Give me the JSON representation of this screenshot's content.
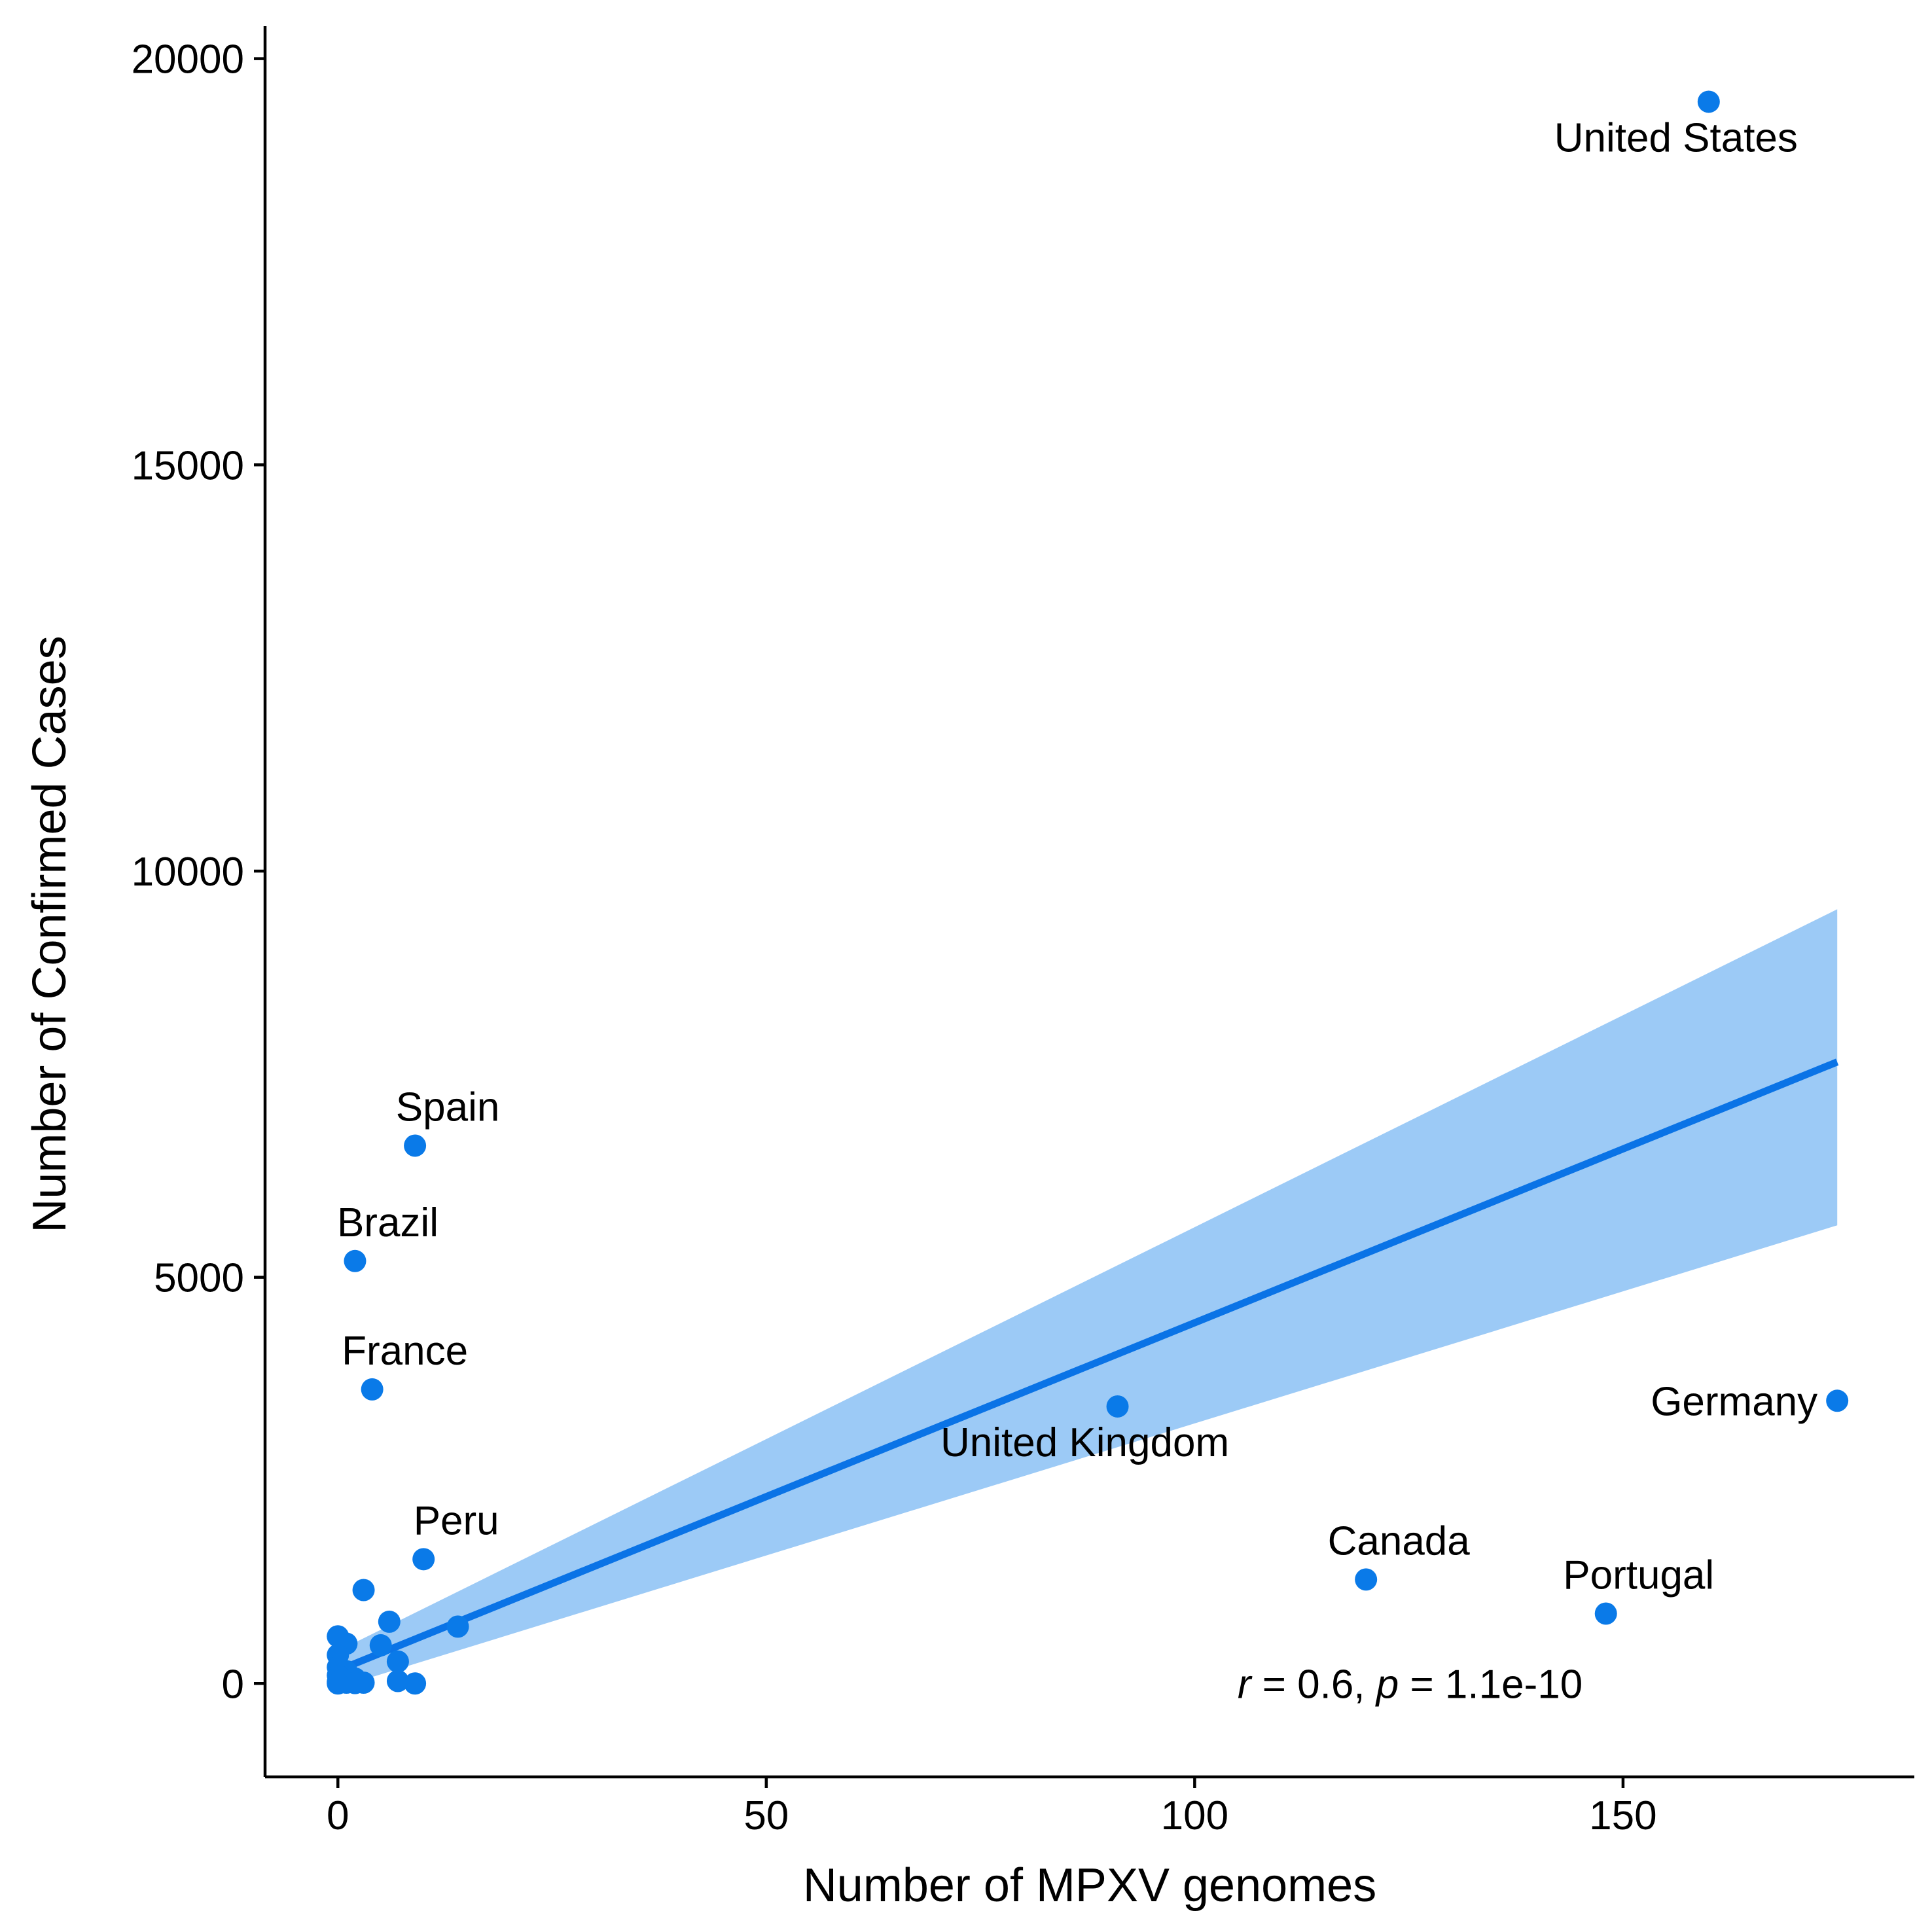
{
  "chart_data": {
    "type": "scatter",
    "title": "",
    "xlabel": "Number of MPXV genomes",
    "ylabel": "Number of Confirmed Cases",
    "xlim": [
      -8.5,
      184
    ],
    "ylim": [
      -1150,
      20400
    ],
    "x_ticks": [
      0,
      50,
      100,
      150
    ],
    "y_ticks": [
      0,
      5000,
      10000,
      15000,
      20000
    ],
    "x_tick_labels": [
      "0",
      "50",
      "100",
      "150"
    ],
    "y_tick_labels": [
      "0",
      "5000",
      "10000",
      "15000",
      "20000"
    ],
    "grid": false,
    "legend": "none",
    "point_color": "#0a7ae8",
    "fit_color": "#0a73e6",
    "band_color": "#9ccaf6",
    "labeled_points": [
      {
        "label": "United States",
        "x": 160,
        "y": 19470,
        "label_pos": "below"
      },
      {
        "label": "Spain",
        "x": 9,
        "y": 6620,
        "label_pos": "above"
      },
      {
        "label": "Brazil",
        "x": 2,
        "y": 5200,
        "label_pos": "above"
      },
      {
        "label": "France",
        "x": 4,
        "y": 3620,
        "label_pos": "above"
      },
      {
        "label": "United Kingdom",
        "x": 91,
        "y": 3410,
        "label_pos": "below"
      },
      {
        "label": "Germany",
        "x": 175,
        "y": 3480,
        "label_pos": "left"
      },
      {
        "label": "Peru",
        "x": 10,
        "y": 1530,
        "label_pos": "above"
      },
      {
        "label": "Canada",
        "x": 120,
        "y": 1280,
        "label_pos": "above"
      },
      {
        "label": "Portugal",
        "x": 148,
        "y": 860,
        "label_pos": "above"
      }
    ],
    "other_points": [
      {
        "x": 3,
        "y": 1150
      },
      {
        "x": 6,
        "y": 760
      },
      {
        "x": 14,
        "y": 700
      },
      {
        "x": 0,
        "y": 580
      },
      {
        "x": 1,
        "y": 490
      },
      {
        "x": 5,
        "y": 470
      },
      {
        "x": 0,
        "y": 350
      },
      {
        "x": 7,
        "y": 270
      },
      {
        "x": 0,
        "y": 200
      },
      {
        "x": 1,
        "y": 150
      },
      {
        "x": 0,
        "y": 100
      },
      {
        "x": 2,
        "y": 60
      },
      {
        "x": 7,
        "y": 30
      },
      {
        "x": 0,
        "y": 20
      },
      {
        "x": 1,
        "y": 10
      },
      {
        "x": 3,
        "y": 10
      },
      {
        "x": 2,
        "y": 5
      },
      {
        "x": 9,
        "y": 0
      },
      {
        "x": 0,
        "y": 0
      }
    ],
    "regression": {
      "x_range": [
        0,
        175
      ],
      "intercept": 160,
      "slope": 42.8,
      "ci_lower": [
        [
          0,
          -50
        ],
        [
          175,
          5640
        ]
      ],
      "ci_upper": [
        [
          0,
          400
        ],
        [
          175,
          9530
        ]
      ]
    },
    "annotation": {
      "r_symbol": "r",
      "r_text": " = 0.6, ",
      "p_symbol": "p",
      "p_text": " = 1.1e-10",
      "x": 105,
      "y": 0
    }
  }
}
